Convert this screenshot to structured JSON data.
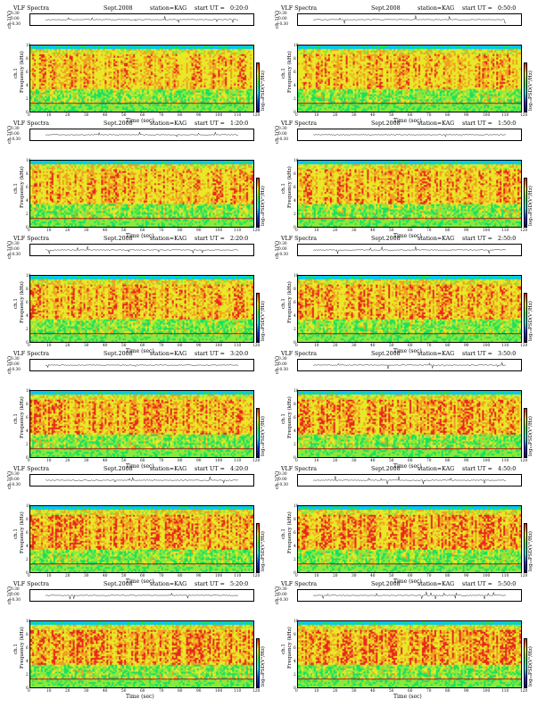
{
  "header": {
    "title": "VLF Spectra",
    "date": "Sept.2008",
    "station": "station=KAG",
    "start_prefix": "start UT ="
  },
  "labels": {
    "waveform_y": "ch.1(V)",
    "spectrogram_y": "Frequency (kHz)",
    "channel_tag": "ch.1",
    "colorbar": "log₁₀PSD(V²/Hz)",
    "x_axis": "Time (sec)"
  },
  "waveform_ticks": [
    "0.30",
    "0.00",
    "-0.30"
  ],
  "freq_ticks": [
    "0",
    "2",
    "4",
    "6",
    "8",
    "10"
  ],
  "time_ticks": [
    "0",
    "10",
    "20",
    "30",
    "40",
    "50",
    "60",
    "70",
    "80",
    "90",
    "100",
    "110",
    "120"
  ],
  "panels": [
    {
      "start": "0:20:0"
    },
    {
      "start": "0:50:0"
    },
    {
      "start": "1:20:0"
    },
    {
      "start": "1:50:0"
    },
    {
      "start": "2:20:0"
    },
    {
      "start": "2:50:0"
    },
    {
      "start": "3:20:0"
    },
    {
      "start": "3:50:0"
    },
    {
      "start": "4:20:0"
    },
    {
      "start": "4:50:0"
    },
    {
      "start": "5:20:0"
    },
    {
      "start": "5:50:0"
    }
  ],
  "colors": {
    "spectro": [
      "#1050e0",
      "#00c8ff",
      "#18e060",
      "#8ce83c",
      "#e8e828",
      "#f0a020",
      "#e8281c"
    ],
    "colorbar": [
      "#ff2020",
      "#ffe000",
      "#40ff40",
      "#00ffff",
      "#0040ff",
      "#000080"
    ],
    "horizontal_line": "#b01010"
  },
  "chart_data": {
    "type": "heatmap",
    "x_range": [
      0,
      120
    ],
    "y_range_khz": [
      0,
      10
    ],
    "waveform_range_v": [
      -0.3,
      0.3
    ],
    "grid": false,
    "legend": "colorbar-right"
  }
}
